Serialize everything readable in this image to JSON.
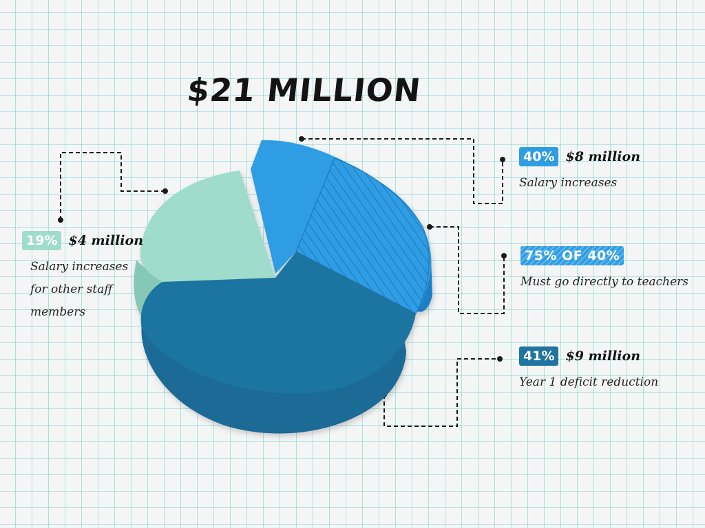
{
  "title": "$21 MILLION",
  "chart_data": {
    "type": "pie",
    "title": "$21 MILLION",
    "slices": [
      {
        "label": "Salary increases",
        "percent": 40,
        "amount": "$8 million",
        "color": "#2e9de4"
      },
      {
        "label": "Year 1 deficit reduction",
        "percent": 41,
        "amount": "$9 million",
        "color": "#1f74a0"
      },
      {
        "label": "Salary increases for other staff members",
        "percent": 19,
        "amount": "$4 million",
        "color": "#9fdccc"
      }
    ],
    "sub_slice": {
      "parent": "Salary increases",
      "percent_of_parent": 75,
      "label": "Must go directly to teachers",
      "pattern": "hatched"
    }
  },
  "callouts": {
    "salary": {
      "pct": "40%",
      "amount": "$8 million",
      "desc": "Salary increases"
    },
    "teachers": {
      "pct": "75% OF 40%",
      "desc": "Must go directly to teachers"
    },
    "deficit": {
      "pct": "41%",
      "amount": "$9 million",
      "desc": "Year 1 deficit reduction"
    },
    "staff": {
      "pct": "19%",
      "amount": "$4 million",
      "desc_lines": [
        "Salary increases",
        "for other staff",
        "members"
      ]
    }
  },
  "colors": {
    "teal": "#9fdccc",
    "blue": "#2e9de4",
    "dark_blue": "#1f74a0"
  }
}
